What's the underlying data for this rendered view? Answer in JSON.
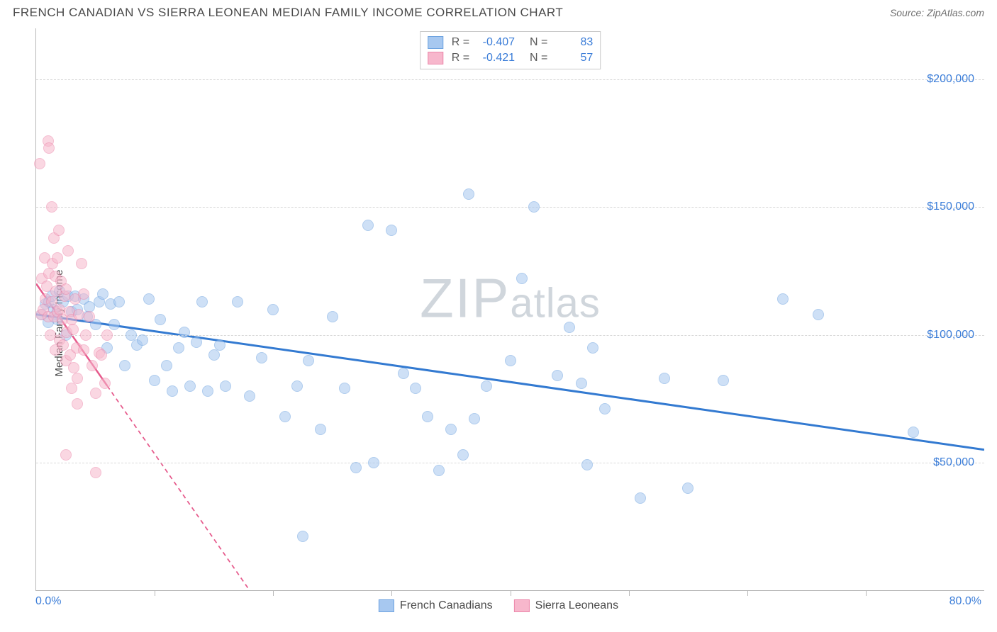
{
  "title": "FRENCH CANADIAN VS SIERRA LEONEAN MEDIAN FAMILY INCOME CORRELATION CHART",
  "source": "Source: ZipAtlas.com",
  "ylabel": "Median Family Income",
  "watermark_big": "ZIP",
  "watermark_small": "atlas",
  "chart": {
    "type": "scatter",
    "x_domain": [
      0,
      80
    ],
    "y_domain": [
      0,
      220000
    ],
    "x_axis_label_min": "0.0%",
    "x_axis_label_max": "80.0%",
    "y_ticks": [
      50000,
      100000,
      150000,
      200000
    ],
    "y_tick_labels": [
      "$50,000",
      "$100,000",
      "$150,000",
      "$200,000"
    ],
    "x_minor_ticks": [
      10,
      20,
      30,
      40,
      50,
      60,
      70
    ],
    "grid_color": "#d8d8d8",
    "axis_color": "#b8b8b8",
    "background_color": "#ffffff",
    "label_color": "#3b7dd8",
    "marker_radius": 8,
    "marker_opacity": 0.55,
    "series": [
      {
        "name": "French Canadians",
        "fill": "#a7c8f0",
        "stroke": "#6ea3e0",
        "trend": {
          "x1": 0,
          "y1": 108000,
          "x2": 80,
          "y2": 55000,
          "stroke": "#337ad1",
          "width": 3,
          "dash": "none",
          "solid_until_x": 80
        },
        "stats": {
          "R": "-0.407",
          "N": "83"
        },
        "points": [
          [
            0.5,
            108000
          ],
          [
            0.8,
            112000
          ],
          [
            1.0,
            105000
          ],
          [
            1.1,
            113000
          ],
          [
            1.3,
            115000
          ],
          [
            1.5,
            110000
          ],
          [
            1.7,
            108000
          ],
          [
            1.8,
            106000
          ],
          [
            2.0,
            117000
          ],
          [
            2.3,
            113000
          ],
          [
            2.5,
            100000
          ],
          [
            2.7,
            115000
          ],
          [
            3.0,
            109000
          ],
          [
            3.3,
            115000
          ],
          [
            3.5,
            110000
          ],
          [
            4.0,
            114000
          ],
          [
            4.3,
            107000
          ],
          [
            4.5,
            111000
          ],
          [
            5.0,
            104000
          ],
          [
            5.3,
            113000
          ],
          [
            5.6,
            116000
          ],
          [
            6.0,
            95000
          ],
          [
            6.3,
            112000
          ],
          [
            6.6,
            104000
          ],
          [
            7.0,
            113000
          ],
          [
            7.5,
            88000
          ],
          [
            8.0,
            100000
          ],
          [
            8.5,
            96000
          ],
          [
            9.0,
            98000
          ],
          [
            9.5,
            114000
          ],
          [
            10.0,
            82000
          ],
          [
            10.5,
            106000
          ],
          [
            11.0,
            88000
          ],
          [
            11.5,
            78000
          ],
          [
            12.0,
            95000
          ],
          [
            12.5,
            101000
          ],
          [
            13.0,
            80000
          ],
          [
            13.5,
            97000
          ],
          [
            14.0,
            113000
          ],
          [
            14.5,
            78000
          ],
          [
            15.0,
            92000
          ],
          [
            15.5,
            96000
          ],
          [
            16.0,
            80000
          ],
          [
            17.0,
            113000
          ],
          [
            18.0,
            76000
          ],
          [
            19.0,
            91000
          ],
          [
            20.0,
            110000
          ],
          [
            21.0,
            68000
          ],
          [
            22.0,
            80000
          ],
          [
            22.5,
            21000
          ],
          [
            23.0,
            90000
          ],
          [
            24.0,
            63000
          ],
          [
            25.0,
            107000
          ],
          [
            26.0,
            79000
          ],
          [
            27.0,
            48000
          ],
          [
            28.0,
            143000
          ],
          [
            28.5,
            50000
          ],
          [
            30.0,
            141000
          ],
          [
            31.0,
            85000
          ],
          [
            32.0,
            79000
          ],
          [
            33.0,
            68000
          ],
          [
            34.0,
            47000
          ],
          [
            35.0,
            63000
          ],
          [
            36.0,
            53000
          ],
          [
            36.5,
            155000
          ],
          [
            37.0,
            67000
          ],
          [
            38.0,
            80000
          ],
          [
            40.0,
            90000
          ],
          [
            41.0,
            122000
          ],
          [
            42.0,
            150000
          ],
          [
            44.0,
            84000
          ],
          [
            45.0,
            103000
          ],
          [
            46.0,
            81000
          ],
          [
            46.5,
            49000
          ],
          [
            47.0,
            95000
          ],
          [
            48.0,
            71000
          ],
          [
            51.0,
            36000
          ],
          [
            53.0,
            83000
          ],
          [
            55.0,
            40000
          ],
          [
            58.0,
            82000
          ],
          [
            63.0,
            114000
          ],
          [
            66.0,
            108000
          ],
          [
            74.0,
            62000
          ]
        ]
      },
      {
        "name": "Sierra Leoneans",
        "fill": "#f7b7cc",
        "stroke": "#ec88ab",
        "trend": {
          "x1": 0,
          "y1": 120000,
          "x2": 18,
          "y2": 0,
          "stroke": "#e65a8c",
          "width": 2.5,
          "dash": "6,5",
          "solid_until_x": 6
        },
        "stats": {
          "R": "-0.421",
          "N": "57"
        },
        "points": [
          [
            0.3,
            167000
          ],
          [
            0.4,
            108000
          ],
          [
            0.5,
            122000
          ],
          [
            0.6,
            110000
          ],
          [
            0.7,
            130000
          ],
          [
            0.8,
            114000
          ],
          [
            0.9,
            119000
          ],
          [
            1.0,
            176000
          ],
          [
            1.0,
            107000
          ],
          [
            1.1,
            124000
          ],
          [
            1.1,
            173000
          ],
          [
            1.2,
            100000
          ],
          [
            1.3,
            150000
          ],
          [
            1.3,
            113000
          ],
          [
            1.4,
            128000
          ],
          [
            1.5,
            138000
          ],
          [
            1.5,
            107000
          ],
          [
            1.6,
            123000
          ],
          [
            1.6,
            94000
          ],
          [
            1.7,
            117000
          ],
          [
            1.8,
            109000
          ],
          [
            1.8,
            130000
          ],
          [
            1.9,
            141000
          ],
          [
            2.0,
            110000
          ],
          [
            2.0,
            98000
          ],
          [
            2.1,
            121000
          ],
          [
            2.2,
            106000
          ],
          [
            2.3,
            96000
          ],
          [
            2.4,
            115000
          ],
          [
            2.5,
            118000
          ],
          [
            2.5,
            90000
          ],
          [
            2.6,
            101000
          ],
          [
            2.7,
            133000
          ],
          [
            2.8,
            109000
          ],
          [
            2.9,
            92000
          ],
          [
            3.0,
            106000
          ],
          [
            3.1,
            102000
          ],
          [
            3.2,
            87000
          ],
          [
            3.3,
            114000
          ],
          [
            3.4,
            95000
          ],
          [
            3.5,
            83000
          ],
          [
            3.6,
            108000
          ],
          [
            3.8,
            128000
          ],
          [
            4.0,
            94000
          ],
          [
            4.2,
            100000
          ],
          [
            4.5,
            107000
          ],
          [
            4.7,
            88000
          ],
          [
            5.0,
            77000
          ],
          [
            5.3,
            93000
          ],
          [
            5.5,
            92000
          ],
          [
            5.8,
            81000
          ],
          [
            6.0,
            100000
          ],
          [
            2.5,
            53000
          ],
          [
            3.0,
            79000
          ],
          [
            3.5,
            73000
          ],
          [
            5.0,
            46000
          ],
          [
            4.0,
            116000
          ]
        ]
      }
    ]
  },
  "legend_bottom": [
    {
      "label": "French Canadians",
      "fill": "#a7c8f0",
      "stroke": "#6ea3e0"
    },
    {
      "label": "Sierra Leoneans",
      "fill": "#f7b7cc",
      "stroke": "#ec88ab"
    }
  ]
}
